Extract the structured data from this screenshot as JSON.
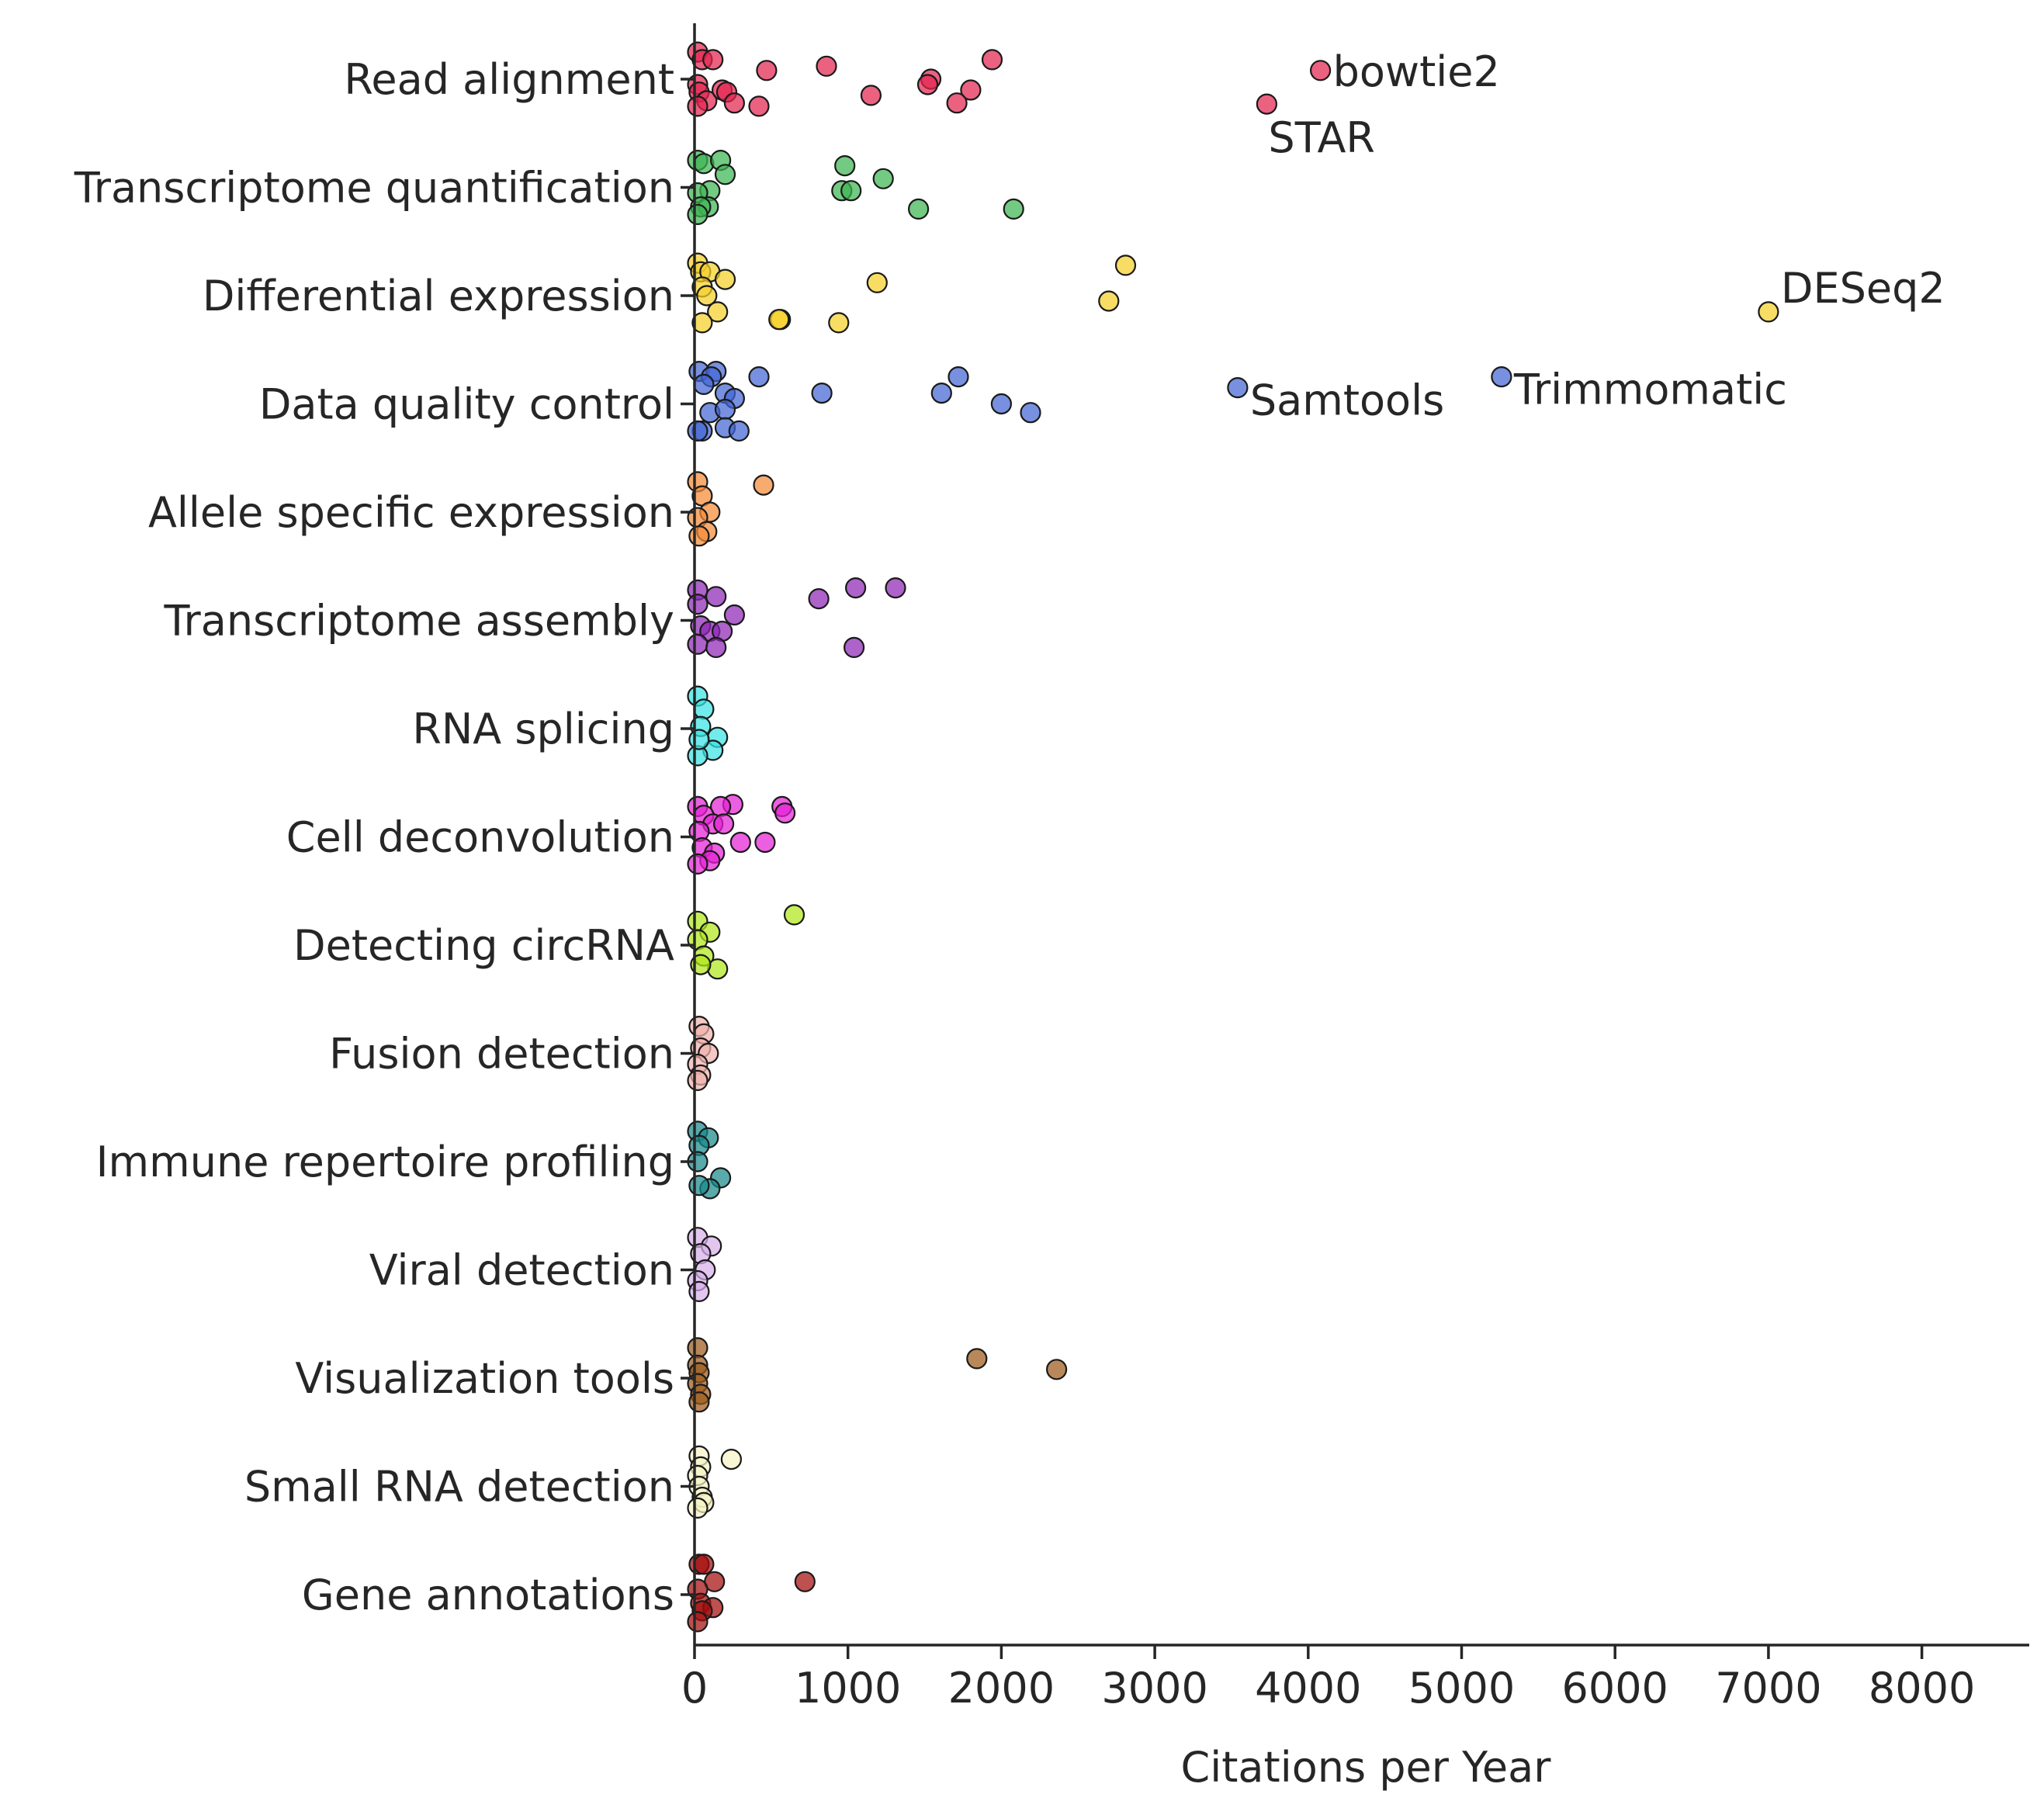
{
  "chart_data": {
    "type": "scatter",
    "title": "",
    "xlabel": "Citations per Year",
    "ylabel": "",
    "xlim": [
      0,
      8700
    ],
    "xticks": [
      0,
      1000,
      2000,
      3000,
      4000,
      5000,
      6000,
      7000,
      8000
    ],
    "grid": false,
    "legend": "none",
    "categories": [
      "Read alignment",
      "Transcriptome quantification",
      "Differential expression",
      "Data quality control",
      "Allele specific expression",
      "Transcriptome assembly",
      "RNA splicing",
      "Cell deconvolution",
      "Detecting circRNA",
      "Fusion detection",
      "Immune repertoire profiling",
      "Viral detection",
      "Visualization tools",
      "Small RNA detection",
      "Gene annotations"
    ],
    "series": [
      {
        "category": "Read alignment",
        "color": "#e3254f",
        "points": [
          [
            10,
            -0.25
          ],
          [
            50,
            -0.18
          ],
          [
            120,
            -0.18
          ],
          [
            470,
            -0.08
          ],
          [
            860,
            -0.12
          ],
          [
            1940,
            -0.18
          ],
          [
            1540,
            0.0
          ],
          [
            1520,
            0.05
          ],
          [
            1800,
            0.1
          ],
          [
            1150,
            0.15
          ],
          [
            1710,
            0.22
          ],
          [
            5,
            0.05
          ],
          [
            30,
            0.12
          ],
          [
            80,
            0.2
          ],
          [
            180,
            0.1
          ],
          [
            210,
            0.12
          ],
          [
            260,
            0.22
          ],
          [
            420,
            0.25
          ],
          [
            20,
            0.25
          ],
          [
            4080,
            -0.08
          ],
          [
            3730,
            0.23
          ]
        ]
      },
      {
        "category": "Transcriptome quantification",
        "color": "#3db552",
        "points": [
          [
            10,
            -0.25
          ],
          [
            60,
            -0.22
          ],
          [
            170,
            -0.25
          ],
          [
            980,
            -0.2
          ],
          [
            1230,
            -0.08
          ],
          [
            200,
            -0.12
          ],
          [
            960,
            0.03
          ],
          [
            1020,
            0.03
          ],
          [
            100,
            0.03
          ],
          [
            20,
            0.05
          ],
          [
            1460,
            0.2
          ],
          [
            2080,
            0.2
          ],
          [
            90,
            0.18
          ],
          [
            40,
            0.18
          ],
          [
            10,
            0.25
          ]
        ]
      },
      {
        "category": "Differential expression",
        "color": "#f5d02a",
        "points": [
          [
            20,
            -0.3
          ],
          [
            2810,
            -0.28
          ],
          [
            40,
            -0.22
          ],
          [
            100,
            -0.22
          ],
          [
            200,
            -0.15
          ],
          [
            1190,
            -0.12
          ],
          [
            50,
            -0.08
          ],
          [
            80,
            0.0
          ],
          [
            2700,
            0.05
          ],
          [
            150,
            0.15
          ],
          [
            560,
            0.22
          ],
          [
            550,
            0.22
          ],
          [
            940,
            0.25
          ],
          [
            50,
            0.25
          ],
          [
            7000,
            0.15
          ]
        ]
      },
      {
        "category": "Data quality control",
        "color": "#4267d4",
        "points": [
          [
            30,
            -0.3
          ],
          [
            140,
            -0.3
          ],
          [
            110,
            -0.25
          ],
          [
            420,
            -0.25
          ],
          [
            1720,
            -0.25
          ],
          [
            60,
            -0.18
          ],
          [
            830,
            -0.1
          ],
          [
            1610,
            -0.1
          ],
          [
            200,
            -0.1
          ],
          [
            260,
            -0.05
          ],
          [
            2000,
            0.0
          ],
          [
            2190,
            0.08
          ],
          [
            100,
            0.08
          ],
          [
            200,
            0.05
          ],
          [
            200,
            0.22
          ],
          [
            290,
            0.25
          ],
          [
            50,
            0.25
          ],
          [
            20,
            0.25
          ],
          [
            3540,
            -0.15
          ],
          [
            5260,
            -0.25
          ]
        ]
      },
      {
        "category": "Allele specific expression",
        "color": "#f48a38",
        "points": [
          [
            20,
            -0.28
          ],
          [
            450,
            -0.25
          ],
          [
            50,
            -0.15
          ],
          [
            100,
            0.0
          ],
          [
            20,
            0.05
          ],
          [
            80,
            0.18
          ],
          [
            30,
            0.22
          ]
        ]
      },
      {
        "category": "Transcriptome assembly",
        "color": "#8e27b6",
        "points": [
          [
            10,
            -0.28
          ],
          [
            1310,
            -0.3
          ],
          [
            1050,
            -0.3
          ],
          [
            140,
            -0.22
          ],
          [
            810,
            -0.2
          ],
          [
            20,
            -0.15
          ],
          [
            260,
            -0.05
          ],
          [
            40,
            0.05
          ],
          [
            100,
            0.1
          ],
          [
            180,
            0.1
          ],
          [
            20,
            0.22
          ],
          [
            140,
            0.25
          ],
          [
            1040,
            0.25
          ]
        ]
      },
      {
        "category": "RNA splicing",
        "color": "#3ae3e3",
        "points": [
          [
            20,
            -0.3
          ],
          [
            60,
            -0.18
          ],
          [
            40,
            -0.02
          ],
          [
            150,
            0.08
          ],
          [
            120,
            0.2
          ],
          [
            20,
            0.25
          ],
          [
            30,
            0.1
          ]
        ]
      },
      {
        "category": "Cell deconvolution",
        "color": "#e621d6",
        "points": [
          [
            20,
            -0.28
          ],
          [
            250,
            -0.3
          ],
          [
            170,
            -0.28
          ],
          [
            570,
            -0.28
          ],
          [
            590,
            -0.22
          ],
          [
            60,
            -0.2
          ],
          [
            120,
            -0.12
          ],
          [
            190,
            -0.12
          ],
          [
            30,
            -0.05
          ],
          [
            300,
            0.05
          ],
          [
            460,
            0.05
          ],
          [
            50,
            0.1
          ],
          [
            130,
            0.15
          ],
          [
            100,
            0.22
          ],
          [
            20,
            0.25
          ]
        ]
      },
      {
        "category": "Detecting circRNA",
        "color": "#b0e81c",
        "points": [
          [
            20,
            -0.22
          ],
          [
            650,
            -0.28
          ],
          [
            100,
            -0.12
          ],
          [
            20,
            -0.05
          ],
          [
            60,
            0.1
          ],
          [
            150,
            0.22
          ],
          [
            40,
            0.18
          ]
        ]
      },
      {
        "category": "Fusion detection",
        "color": "#f0b3ad",
        "points": [
          [
            30,
            -0.25
          ],
          [
            60,
            -0.18
          ],
          [
            40,
            -0.05
          ],
          [
            90,
            0.0
          ],
          [
            20,
            0.1
          ],
          [
            40,
            0.2
          ],
          [
            20,
            0.25
          ]
        ]
      },
      {
        "category": "Immune repertoire profiling",
        "color": "#17898a",
        "points": [
          [
            20,
            -0.28
          ],
          [
            90,
            -0.22
          ],
          [
            30,
            -0.15
          ],
          [
            20,
            0.0
          ],
          [
            170,
            0.15
          ],
          [
            100,
            0.25
          ],
          [
            30,
            0.22
          ]
        ]
      },
      {
        "category": "Viral detection",
        "color": "#d8b0ea",
        "points": [
          [
            20,
            -0.3
          ],
          [
            110,
            -0.22
          ],
          [
            40,
            -0.15
          ],
          [
            70,
            0.0
          ],
          [
            20,
            0.1
          ],
          [
            30,
            0.2
          ]
        ]
      },
      {
        "category": "Visualization tools",
        "color": "#9c5a1a",
        "points": [
          [
            20,
            -0.28
          ],
          [
            1840,
            -0.18
          ],
          [
            2360,
            -0.08
          ],
          [
            20,
            -0.12
          ],
          [
            30,
            -0.05
          ],
          [
            20,
            0.05
          ],
          [
            40,
            0.15
          ],
          [
            30,
            0.22
          ]
        ]
      },
      {
        "category": "Small RNA detection",
        "color": "#f5f3c5",
        "points": [
          [
            30,
            -0.28
          ],
          [
            240,
            -0.25
          ],
          [
            40,
            -0.18
          ],
          [
            20,
            -0.1
          ],
          [
            30,
            0.0
          ],
          [
            50,
            0.1
          ],
          [
            60,
            0.15
          ],
          [
            20,
            0.2
          ]
        ]
      },
      {
        "category": "Gene annotations",
        "color": "#a50c0c",
        "points": [
          [
            30,
            -0.28
          ],
          [
            60,
            -0.28
          ],
          [
            720,
            -0.12
          ],
          [
            130,
            -0.12
          ],
          [
            20,
            -0.05
          ],
          [
            40,
            0.08
          ],
          [
            120,
            0.12
          ],
          [
            50,
            0.15
          ],
          [
            20,
            0.25
          ]
        ]
      }
    ],
    "annotations": [
      {
        "text": "bowtie2",
        "x": 4080,
        "category": "Read alignment",
        "offset": -0.08,
        "anchor": "right"
      },
      {
        "text": "STAR",
        "x": 3730,
        "category": "Read alignment",
        "offset": 0.23,
        "anchor": "below"
      },
      {
        "text": "DESeq2",
        "x": 7000,
        "category": "Differential expression",
        "offset": 0.15,
        "anchor": "upper-right"
      },
      {
        "text": "Samtools",
        "x": 3540,
        "category": "Data quality control",
        "offset": -0.15,
        "anchor": "lower-right"
      },
      {
        "text": "Trimmomatic",
        "x": 5260,
        "category": "Data quality control",
        "offset": -0.25,
        "anchor": "lower-right"
      }
    ]
  }
}
